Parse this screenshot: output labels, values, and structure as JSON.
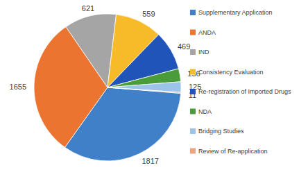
{
  "chart_data": {
    "type": "pie",
    "categories": [
      "Supplementary Application",
      "ANDA",
      "IND",
      "Consistency Evaluation",
      "Re-registration of Imported Drugs",
      "NDA",
      "Bridging Studies",
      "Review of Re-application"
    ],
    "values": [
      1817,
      1655,
      621,
      559,
      469,
      156,
      125,
      11
    ],
    "colors": [
      "#3f80c9",
      "#ea7430",
      "#a5a5a5",
      "#f7bb2a",
      "#2154b9",
      "#4a9c3b",
      "#9cc3e8",
      "#f0a37f"
    ],
    "data_labels": true,
    "legend": "right"
  }
}
